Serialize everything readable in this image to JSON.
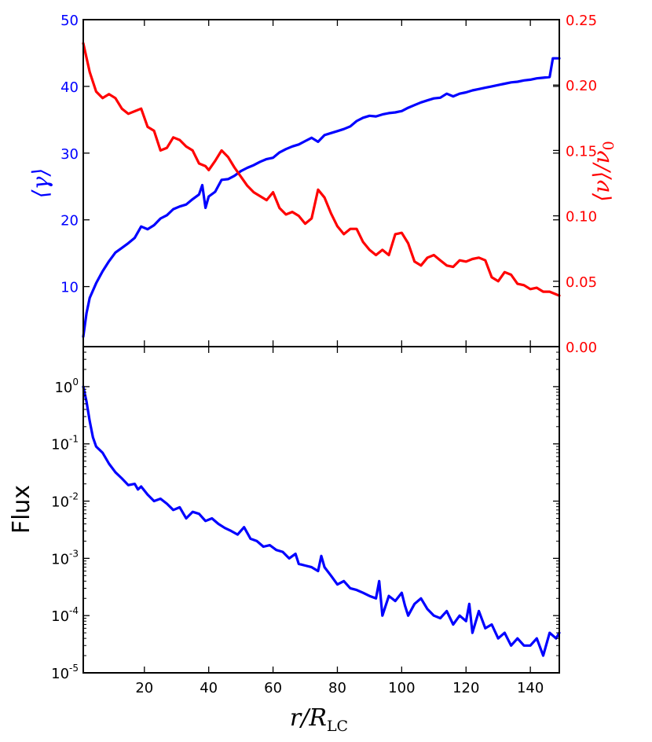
{
  "chart_data": [
    {
      "type": "line",
      "panel": "top",
      "xlim": [
        1,
        149
      ],
      "x_ticks": [
        20,
        40,
        60,
        80,
        100,
        120,
        140
      ],
      "axes": {
        "left": {
          "label": "⟨γ⟩",
          "color": "#0000ff",
          "ylim": [
            1,
            50
          ],
          "ticks": [
            10,
            20,
            30,
            40,
            50
          ],
          "tick_labels": [
            "10",
            "20",
            "30",
            "40",
            "50"
          ]
        },
        "right": {
          "label_main": "⟨ν⟩/ν",
          "label_sub": "0",
          "color": "#ff0000",
          "ylim": [
            0,
            0.25
          ],
          "ticks": [
            0,
            0.05,
            0.1,
            0.15,
            0.2,
            0.25
          ],
          "tick_labels": [
            "0.00",
            "0.05",
            "0.10",
            "0.15",
            "0.20",
            "0.25"
          ]
        }
      },
      "series": [
        {
          "axis": "left",
          "color": "#0000ff",
          "points": [
            [
              1,
              2.5
            ],
            [
              2,
              6
            ],
            [
              3,
              8.3
            ],
            [
              5,
              10.5
            ],
            [
              7,
              12.3
            ],
            [
              9,
              13.8
            ],
            [
              11,
              15.1
            ],
            [
              13,
              15.8
            ],
            [
              15,
              16.5
            ],
            [
              17,
              17.3
            ],
            [
              19,
              19
            ],
            [
              21,
              18.6
            ],
            [
              23,
              19.2
            ],
            [
              25,
              20.2
            ],
            [
              27,
              20.7
            ],
            [
              29,
              21.6
            ],
            [
              31,
              22
            ],
            [
              33,
              22.3
            ],
            [
              35,
              23.1
            ],
            [
              37,
              23.8
            ],
            [
              38,
              25.2
            ],
            [
              39,
              21.8
            ],
            [
              40,
              23.5
            ],
            [
              42,
              24.2
            ],
            [
              44,
              26
            ],
            [
              46,
              26.1
            ],
            [
              48,
              26.6
            ],
            [
              50,
              27.3
            ],
            [
              52,
              27.8
            ],
            [
              54,
              28.2
            ],
            [
              56,
              28.7
            ],
            [
              58,
              29.1
            ],
            [
              60,
              29.3
            ],
            [
              62,
              30.1
            ],
            [
              64,
              30.6
            ],
            [
              66,
              31
            ],
            [
              68,
              31.3
            ],
            [
              70,
              31.8
            ],
            [
              72,
              32.3
            ],
            [
              74,
              31.7
            ],
            [
              76,
              32.7
            ],
            [
              78,
              33
            ],
            [
              80,
              33.3
            ],
            [
              82,
              33.6
            ],
            [
              84,
              34
            ],
            [
              86,
              34.8
            ],
            [
              88,
              35.3
            ],
            [
              90,
              35.6
            ],
            [
              92,
              35.5
            ],
            [
              94,
              35.8
            ],
            [
              96,
              36
            ],
            [
              98,
              36.1
            ],
            [
              100,
              36.3
            ],
            [
              102,
              36.8
            ],
            [
              104,
              37.2
            ],
            [
              106,
              37.6
            ],
            [
              108,
              37.9
            ],
            [
              110,
              38.2
            ],
            [
              112,
              38.3
            ],
            [
              114,
              38.9
            ],
            [
              116,
              38.5
            ],
            [
              118,
              38.9
            ],
            [
              120,
              39.1
            ],
            [
              122,
              39.4
            ],
            [
              124,
              39.6
            ],
            [
              126,
              39.8
            ],
            [
              128,
              40
            ],
            [
              130,
              40.2
            ],
            [
              132,
              40.4
            ],
            [
              134,
              40.6
            ],
            [
              136,
              40.7
            ],
            [
              138,
              40.9
            ],
            [
              140,
              41
            ],
            [
              142,
              41.2
            ],
            [
              144,
              41.3
            ],
            [
              146,
              41.4
            ],
            [
              147,
              44.2
            ],
            [
              149,
              44.2
            ]
          ]
        },
        {
          "axis": "right",
          "color": "#ff0000",
          "points": [
            [
              1,
              0.232
            ],
            [
              3,
              0.21
            ],
            [
              5,
              0.195
            ],
            [
              7,
              0.19
            ],
            [
              9,
              0.193
            ],
            [
              11,
              0.19
            ],
            [
              13,
              0.182
            ],
            [
              15,
              0.178
            ],
            [
              17,
              0.18
            ],
            [
              19,
              0.182
            ],
            [
              21,
              0.168
            ],
            [
              23,
              0.165
            ],
            [
              25,
              0.15
            ],
            [
              27,
              0.152
            ],
            [
              29,
              0.16
            ],
            [
              31,
              0.158
            ],
            [
              33,
              0.153
            ],
            [
              35,
              0.15
            ],
            [
              37,
              0.14
            ],
            [
              39,
              0.138
            ],
            [
              40,
              0.135
            ],
            [
              42,
              0.142
            ],
            [
              44,
              0.15
            ],
            [
              46,
              0.145
            ],
            [
              48,
              0.137
            ],
            [
              50,
              0.13
            ],
            [
              52,
              0.123
            ],
            [
              54,
              0.118
            ],
            [
              56,
              0.115
            ],
            [
              58,
              0.112
            ],
            [
              60,
              0.118
            ],
            [
              62,
              0.106
            ],
            [
              64,
              0.101
            ],
            [
              66,
              0.103
            ],
            [
              68,
              0.1
            ],
            [
              70,
              0.094
            ],
            [
              72,
              0.098
            ],
            [
              74,
              0.12
            ],
            [
              76,
              0.114
            ],
            [
              78,
              0.102
            ],
            [
              80,
              0.092
            ],
            [
              82,
              0.086
            ],
            [
              84,
              0.09
            ],
            [
              86,
              0.09
            ],
            [
              88,
              0.08
            ],
            [
              90,
              0.074
            ],
            [
              92,
              0.07
            ],
            [
              94,
              0.074
            ],
            [
              96,
              0.07
            ],
            [
              98,
              0.086
            ],
            [
              100,
              0.087
            ],
            [
              102,
              0.079
            ],
            [
              104,
              0.065
            ],
            [
              106,
              0.062
            ],
            [
              108,
              0.068
            ],
            [
              110,
              0.07
            ],
            [
              112,
              0.066
            ],
            [
              114,
              0.062
            ],
            [
              116,
              0.061
            ],
            [
              118,
              0.066
            ],
            [
              120,
              0.065
            ],
            [
              122,
              0.067
            ],
            [
              124,
              0.068
            ],
            [
              126,
              0.066
            ],
            [
              128,
              0.053
            ],
            [
              130,
              0.05
            ],
            [
              132,
              0.057
            ],
            [
              134,
              0.055
            ],
            [
              136,
              0.048
            ],
            [
              138,
              0.047
            ],
            [
              140,
              0.044
            ],
            [
              142,
              0.045
            ],
            [
              144,
              0.042
            ],
            [
              146,
              0.042
            ],
            [
              149,
              0.039
            ]
          ]
        }
      ]
    },
    {
      "type": "line",
      "panel": "bottom",
      "scale": "log",
      "xlim": [
        1,
        149
      ],
      "x_ticks": [
        20,
        40,
        60,
        80,
        100,
        120,
        140
      ],
      "x_tick_labels": [
        "20",
        "40",
        "60",
        "80",
        "100",
        "120",
        "140"
      ],
      "xlabel_main": "r/R",
      "xlabel_sub": "LC",
      "ylabel": "Flux",
      "ylim": [
        1e-05,
        5
      ],
      "y_ticks": [
        {
          "value": 1,
          "base": "10",
          "exp": "0"
        },
        {
          "value": 0.1,
          "base": "10",
          "exp": "-1"
        },
        {
          "value": 0.01,
          "base": "10",
          "exp": "-2"
        },
        {
          "value": 0.001,
          "base": "10",
          "exp": "-3"
        },
        {
          "value": 0.0001,
          "base": "10",
          "exp": "-4"
        },
        {
          "value": 1e-05,
          "base": "10",
          "exp": "-5"
        }
      ],
      "series": [
        {
          "color": "#0000ff",
          "points": [
            [
              1,
              1.0
            ],
            [
              2,
              0.55
            ],
            [
              3,
              0.25
            ],
            [
              4,
              0.13
            ],
            [
              5,
              0.09
            ],
            [
              7,
              0.07
            ],
            [
              9,
              0.045
            ],
            [
              11,
              0.032
            ],
            [
              13,
              0.025
            ],
            [
              15,
              0.019
            ],
            [
              17,
              0.02
            ],
            [
              18,
              0.016
            ],
            [
              19,
              0.018
            ],
            [
              21,
              0.013
            ],
            [
              23,
              0.01
            ],
            [
              25,
              0.011
            ],
            [
              27,
              0.009
            ],
            [
              29,
              0.007
            ],
            [
              31,
              0.0078
            ],
            [
              33,
              0.005
            ],
            [
              35,
              0.0065
            ],
            [
              37,
              0.006
            ],
            [
              39,
              0.0045
            ],
            [
              41,
              0.005
            ],
            [
              43,
              0.004
            ],
            [
              45,
              0.0034
            ],
            [
              47,
              0.003
            ],
            [
              49,
              0.0026
            ],
            [
              51,
              0.0035
            ],
            [
              53,
              0.0022
            ],
            [
              55,
              0.002
            ],
            [
              57,
              0.0016
            ],
            [
              59,
              0.0017
            ],
            [
              61,
              0.0014
            ],
            [
              63,
              0.0013
            ],
            [
              65,
              0.001
            ],
            [
              67,
              0.0012
            ],
            [
              68,
              0.0008
            ],
            [
              70,
              0.00075
            ],
            [
              72,
              0.0007
            ],
            [
              74,
              0.0006
            ],
            [
              75,
              0.0011
            ],
            [
              76,
              0.0007
            ],
            [
              78,
              0.0005
            ],
            [
              80,
              0.00035
            ],
            [
              82,
              0.0004
            ],
            [
              84,
              0.0003
            ],
            [
              86,
              0.00028
            ],
            [
              88,
              0.00025
            ],
            [
              90,
              0.00022
            ],
            [
              92,
              0.0002
            ],
            [
              93,
              0.0004
            ],
            [
              94,
              0.0001
            ],
            [
              96,
              0.00022
            ],
            [
              98,
              0.00018
            ],
            [
              100,
              0.00025
            ],
            [
              101,
              0.00015
            ],
            [
              102,
              0.0001
            ],
            [
              104,
              0.00016
            ],
            [
              106,
              0.0002
            ],
            [
              108,
              0.00013
            ],
            [
              110,
              0.0001
            ],
            [
              112,
              9e-05
            ],
            [
              114,
              0.00012
            ],
            [
              116,
              7e-05
            ],
            [
              118,
              0.0001
            ],
            [
              120,
              8e-05
            ],
            [
              121,
              0.00016
            ],
            [
              122,
              5e-05
            ],
            [
              124,
              0.00012
            ],
            [
              126,
              6e-05
            ],
            [
              128,
              7e-05
            ],
            [
              130,
              4e-05
            ],
            [
              132,
              5e-05
            ],
            [
              134,
              3e-05
            ],
            [
              136,
              4e-05
            ],
            [
              138,
              3e-05
            ],
            [
              140,
              3e-05
            ],
            [
              142,
              4e-05
            ],
            [
              144,
              2e-05
            ],
            [
              146,
              5e-05
            ],
            [
              148,
              4e-05
            ],
            [
              149,
              5e-05
            ]
          ]
        }
      ]
    }
  ]
}
